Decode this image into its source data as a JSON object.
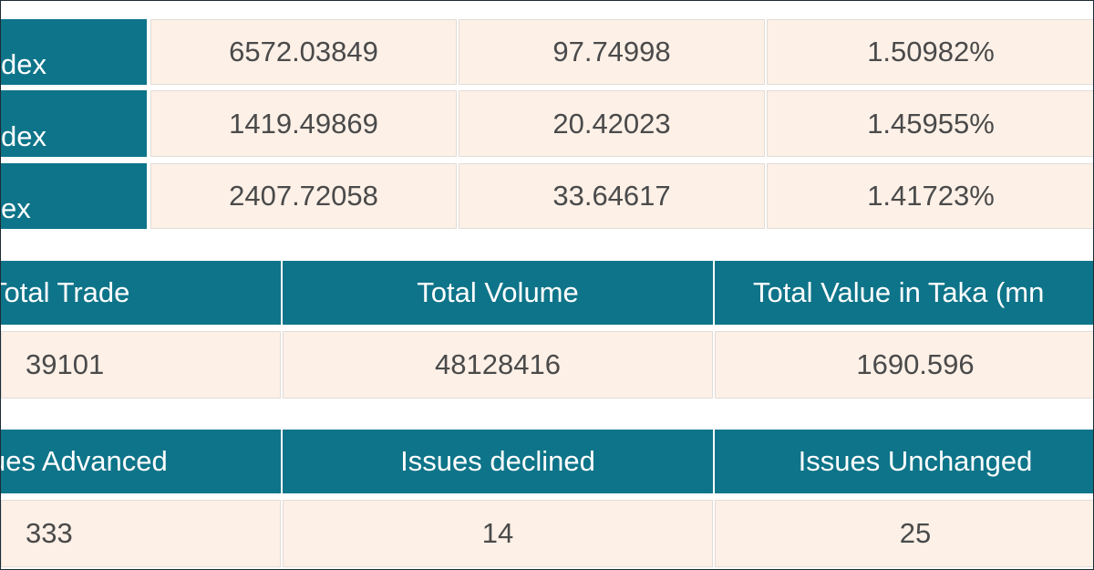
{
  "index_table": {
    "rows": [
      [
        "dex",
        "6572.03849",
        "97.74998",
        "1.50982%"
      ],
      [
        "dex",
        "1419.49869",
        "20.42023",
        "1.45955%"
      ],
      [
        "ex",
        "2407.72058",
        "33.64617",
        "1.41723%"
      ]
    ]
  },
  "trade_table": {
    "headers": [
      "Total Trade",
      "Total Volume",
      "Total Value in Taka (mn"
    ],
    "row": [
      "39101",
      "48128416",
      "1690.596"
    ]
  },
  "issues_table": {
    "headers": [
      "ues Advanced",
      "Issues declined",
      "Issues Unchanged"
    ],
    "row": [
      "333",
      "14",
      "25"
    ]
  }
}
